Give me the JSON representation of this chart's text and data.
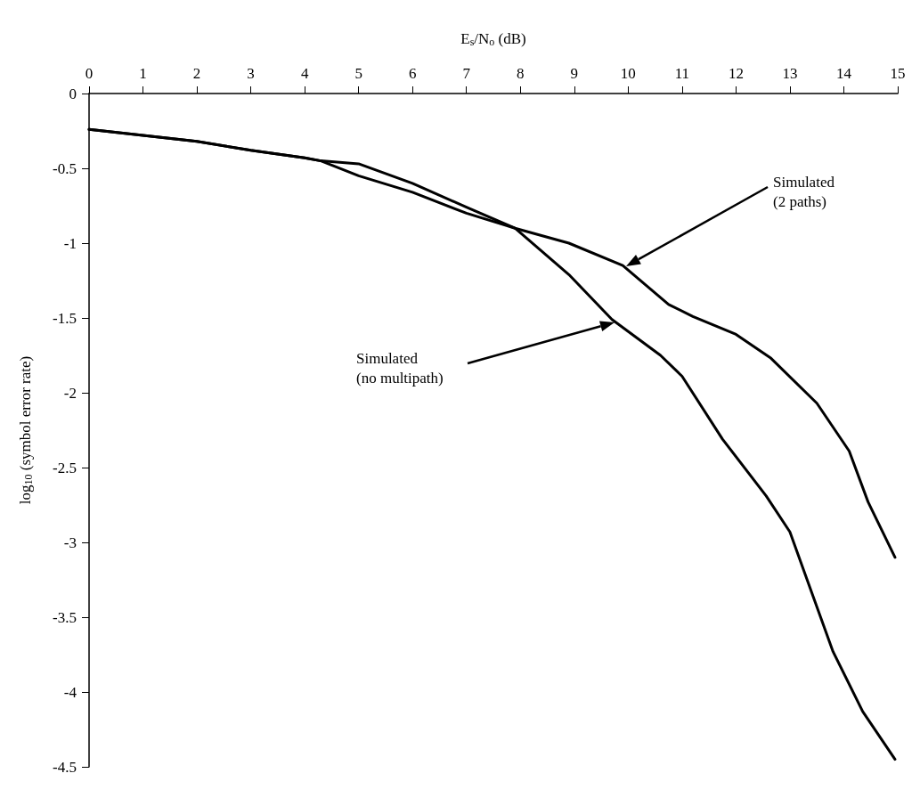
{
  "chart_data": {
    "type": "line",
    "xlabel": "E$_{s}$/N$_{o}$ (dB)",
    "ylabel": "log$_{10}$ (symbol error rate)",
    "xlim": [
      0,
      15
    ],
    "xticks": [
      0,
      1,
      2,
      3,
      4,
      5,
      6,
      7,
      8,
      9,
      10,
      11,
      12,
      13,
      14,
      15
    ],
    "ylim": [
      -4.5,
      0
    ],
    "yticks": [
      0,
      -0.5,
      -1,
      -1.5,
      -2,
      -2.5,
      -3,
      -3.5,
      -4,
      -4.5
    ],
    "grid": false,
    "marker": "none",
    "line_style": "solid",
    "series": [
      {
        "color": "#000000",
        "x": [
          0,
          1,
          2,
          3,
          4,
          4.3,
          5,
          6,
          7,
          7.9,
          8.9,
          9.7,
          10.6,
          11.0,
          11.75,
          12.56,
          13.0,
          13.3,
          13.8,
          14.35,
          14.95
        ],
        "values": [
          -0.24,
          -0.28,
          -0.32,
          -0.38,
          -0.43,
          -0.45,
          -0.47,
          -0.6,
          -0.76,
          -0.9,
          -1.21,
          -1.51,
          -1.75,
          -1.89,
          -2.31,
          -2.69,
          -2.93,
          -3.23,
          -3.73,
          -4.13,
          -4.45
        ]
      },
      {
        "color": "#000000",
        "x": [
          0,
          1,
          2,
          3,
          4,
          4.3,
          5,
          6,
          7,
          7.9,
          8.9,
          9.9,
          10.75,
          11.2,
          12.0,
          12.65,
          13.5,
          14.1,
          14.45,
          14.95
        ],
        "values": [
          -0.24,
          -0.28,
          -0.32,
          -0.38,
          -0.43,
          -0.45,
          -0.55,
          -0.66,
          -0.8,
          -0.9,
          -1.0,
          -1.15,
          -1.41,
          -1.49,
          -1.61,
          -1.77,
          -2.07,
          -2.39,
          -2.73,
          -3.1
        ]
      }
    ],
    "annotations": [
      "Simulated\n(2 paths)",
      "Simulated\n(no multipath)"
    ]
  }
}
